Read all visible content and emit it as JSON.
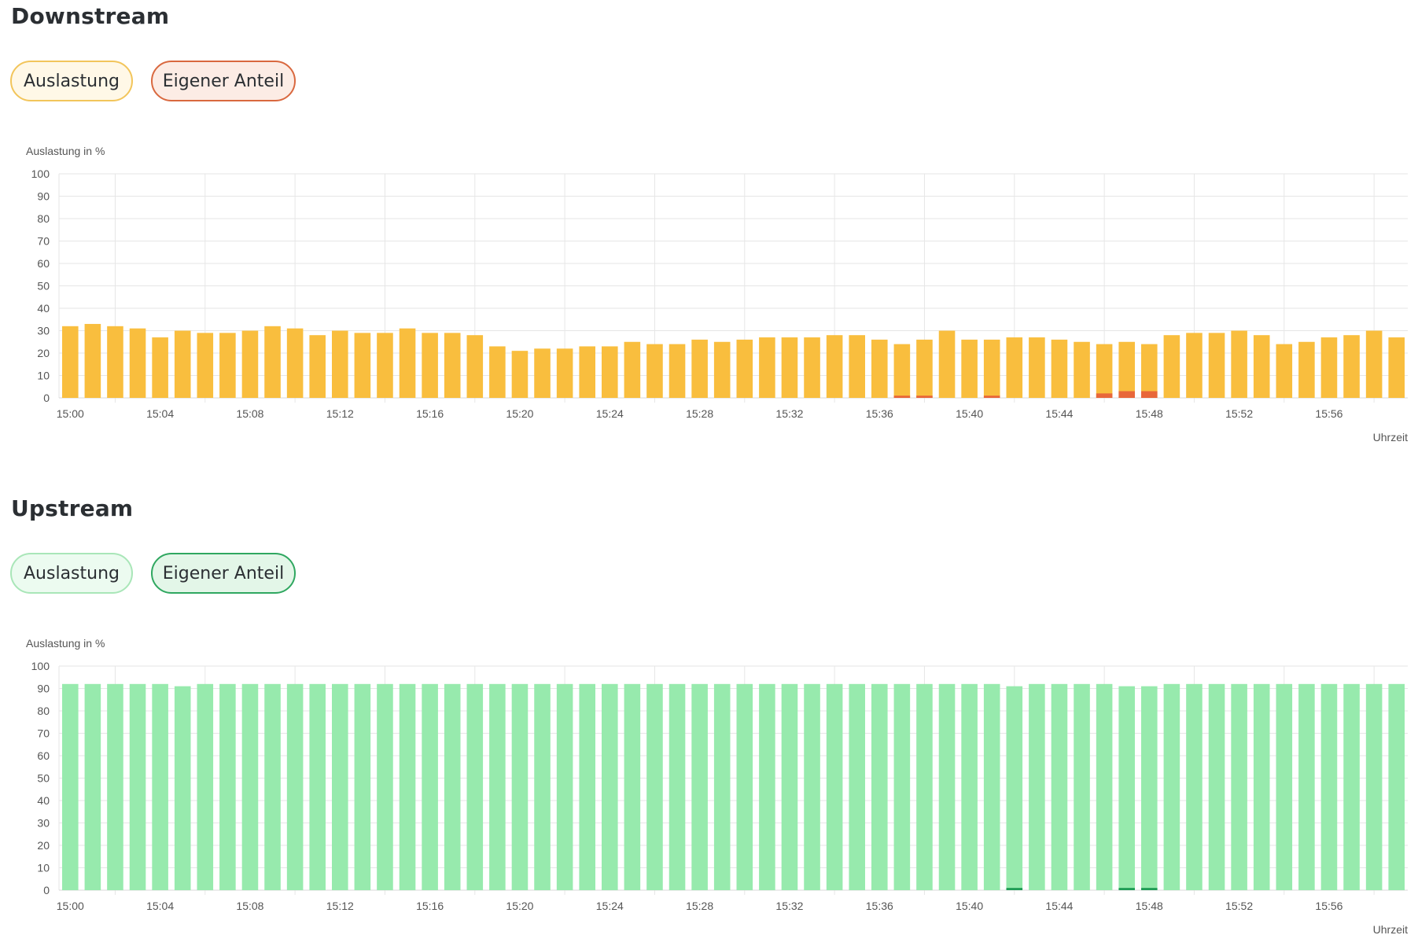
{
  "downstream": {
    "title": "Downstream",
    "buttons": {
      "auslastung": "Auslastung",
      "eigener_anteil": "Eigener Anteil"
    },
    "chart_data": {
      "type": "bar",
      "stacked": true,
      "ylabel": "Auslastung in %",
      "xlabel": "Uhrzeit",
      "ylim": [
        0,
        100
      ],
      "yticks": [
        0,
        10,
        20,
        30,
        40,
        50,
        60,
        70,
        80,
        90,
        100
      ],
      "grid": true,
      "x_tick_labels": [
        "15:00",
        "15:04",
        "15:08",
        "15:12",
        "15:16",
        "15:20",
        "15:24",
        "15:28",
        "15:32",
        "15:36",
        "15:40",
        "15:44",
        "15:48",
        "15:52",
        "15:56"
      ],
      "categories": [
        "15:00",
        "15:01",
        "15:02",
        "15:03",
        "15:04",
        "15:05",
        "15:06",
        "15:07",
        "15:08",
        "15:09",
        "15:10",
        "15:11",
        "15:12",
        "15:13",
        "15:14",
        "15:15",
        "15:16",
        "15:17",
        "15:18",
        "15:19",
        "15:20",
        "15:21",
        "15:22",
        "15:23",
        "15:24",
        "15:25",
        "15:26",
        "15:27",
        "15:28",
        "15:29",
        "15:30",
        "15:31",
        "15:32",
        "15:33",
        "15:34",
        "15:35",
        "15:36",
        "15:37",
        "15:38",
        "15:39",
        "15:40",
        "15:41",
        "15:42",
        "15:43",
        "15:44",
        "15:45",
        "15:46",
        "15:47",
        "15:48",
        "15:49",
        "15:50",
        "15:51",
        "15:52",
        "15:53",
        "15:54",
        "15:55",
        "15:56",
        "15:57",
        "15:58",
        "15:59"
      ],
      "series": [
        {
          "color": "#f9be3e",
          "values": [
            32,
            33,
            32,
            31,
            27,
            30,
            29,
            29,
            30,
            32,
            31,
            28,
            30,
            29,
            29,
            31,
            29,
            29,
            28,
            23,
            21,
            22,
            22,
            23,
            23,
            25,
            24,
            24,
            26,
            25,
            26,
            27,
            27,
            27,
            28,
            28,
            26,
            24,
            26,
            30,
            26,
            26,
            27,
            27,
            26,
            25,
            24,
            25,
            24,
            28,
            29,
            29,
            30,
            28,
            24,
            25,
            27,
            28,
            30,
            27
          ]
        },
        {
          "color": "#e8673a",
          "values": [
            0,
            0,
            0,
            0,
            0,
            0,
            0,
            0,
            0,
            0,
            0,
            0,
            0,
            0,
            0,
            0,
            0,
            0,
            0,
            0,
            0,
            0,
            0,
            0,
            0,
            0,
            0,
            0,
            0,
            0,
            0,
            0,
            0,
            0,
            0,
            0,
            0,
            1,
            1,
            0,
            0,
            1,
            0,
            0,
            0,
            0,
            2,
            3,
            3,
            0,
            0,
            0,
            0,
            0,
            0,
            0,
            0,
            0,
            0,
            0
          ]
        }
      ]
    }
  },
  "upstream": {
    "title": "Upstream",
    "buttons": {
      "auslastung": "Auslastung",
      "eigener_anteil": "Eigener Anteil"
    },
    "chart_data": {
      "type": "bar",
      "stacked": true,
      "ylabel": "Auslastung in %",
      "xlabel": "Uhrzeit",
      "ylim": [
        0,
        100
      ],
      "yticks": [
        0,
        10,
        20,
        30,
        40,
        50,
        60,
        70,
        80,
        90,
        100
      ],
      "grid": true,
      "x_tick_labels": [
        "15:00",
        "15:04",
        "15:08",
        "15:12",
        "15:16",
        "15:20",
        "15:24",
        "15:28",
        "15:32",
        "15:36",
        "15:40",
        "15:44",
        "15:48",
        "15:52",
        "15:56"
      ],
      "categories": [
        "15:00",
        "15:01",
        "15:02",
        "15:03",
        "15:04",
        "15:05",
        "15:06",
        "15:07",
        "15:08",
        "15:09",
        "15:10",
        "15:11",
        "15:12",
        "15:13",
        "15:14",
        "15:15",
        "15:16",
        "15:17",
        "15:18",
        "15:19",
        "15:20",
        "15:21",
        "15:22",
        "15:23",
        "15:24",
        "15:25",
        "15:26",
        "15:27",
        "15:28",
        "15:29",
        "15:30",
        "15:31",
        "15:32",
        "15:33",
        "15:34",
        "15:35",
        "15:36",
        "15:37",
        "15:38",
        "15:39",
        "15:40",
        "15:41",
        "15:42",
        "15:43",
        "15:44",
        "15:45",
        "15:46",
        "15:47",
        "15:48",
        "15:49",
        "15:50",
        "15:51",
        "15:52",
        "15:53",
        "15:54",
        "15:55",
        "15:56",
        "15:57",
        "15:58",
        "15:59"
      ],
      "series": [
        {
          "color": "#97eaad",
          "values": [
            92,
            92,
            92,
            92,
            92,
            91,
            92,
            92,
            92,
            92,
            92,
            92,
            92,
            92,
            92,
            92,
            92,
            92,
            92,
            92,
            92,
            92,
            92,
            92,
            92,
            92,
            92,
            92,
            92,
            92,
            92,
            92,
            92,
            92,
            92,
            92,
            92,
            92,
            92,
            92,
            92,
            92,
            91,
            92,
            92,
            92,
            92,
            91,
            91,
            92,
            92,
            92,
            92,
            92,
            92,
            92,
            92,
            92,
            92,
            92
          ]
        },
        {
          "color": "#1f9c55",
          "values": [
            0,
            0,
            0,
            0,
            0,
            0,
            0,
            0,
            0,
            0,
            0,
            0,
            0,
            0,
            0,
            0,
            0,
            0,
            0,
            0,
            0,
            0,
            0,
            0,
            0,
            0,
            0,
            0,
            0,
            0,
            0,
            0,
            0,
            0,
            0,
            0,
            0,
            0,
            0,
            0,
            0,
            0,
            1,
            0,
            0,
            0,
            0,
            1,
            1,
            0,
            0,
            0,
            0,
            0,
            0,
            0,
            0,
            0,
            0,
            0
          ]
        }
      ]
    }
  }
}
